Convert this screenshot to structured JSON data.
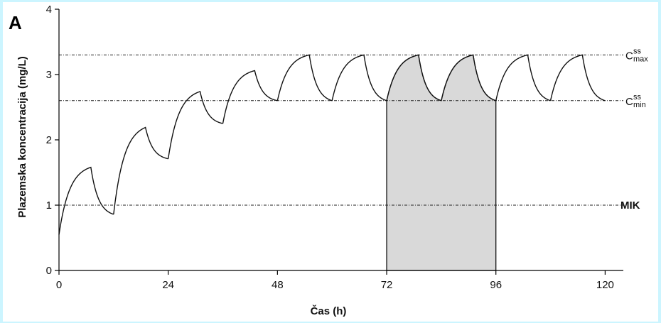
{
  "chart_data": {
    "type": "line",
    "panel_label": "A",
    "xlabel": "Čas (h)",
    "ylabel": "Plazemska koncentracija (mg/L)",
    "xlim": [
      0,
      124
    ],
    "ylim": [
      0,
      4
    ],
    "x_ticks": [
      0,
      24,
      48,
      72,
      96,
      120
    ],
    "y_ticks": [
      0,
      1,
      2,
      3,
      4
    ],
    "grid": false,
    "dosing_interval_h": 12,
    "absorption_duration_h": 7,
    "series": [
      {
        "name": "",
        "dose_cycles": [
          {
            "t_start": 0,
            "c_start": 0.55,
            "c_peak": 1.58,
            "c_end": 0.86
          },
          {
            "t_start": 12,
            "c_start": 0.86,
            "c_peak": 2.19,
            "c_end": 1.71
          },
          {
            "t_start": 24,
            "c_start": 1.71,
            "c_peak": 2.74,
            "c_end": 2.25
          },
          {
            "t_start": 36,
            "c_start": 2.25,
            "c_peak": 3.06,
            "c_end": 2.6
          },
          {
            "t_start": 48,
            "c_start": 2.6,
            "c_peak": 3.3,
            "c_end": 2.6
          },
          {
            "t_start": 60,
            "c_start": 2.6,
            "c_peak": 3.3,
            "c_end": 2.6
          },
          {
            "t_start": 72,
            "c_start": 2.6,
            "c_peak": 3.3,
            "c_end": 2.6
          },
          {
            "t_start": 84,
            "c_start": 2.6,
            "c_peak": 3.3,
            "c_end": 2.6
          },
          {
            "t_start": 96,
            "c_start": 2.6,
            "c_peak": 3.3,
            "c_end": 2.6
          },
          {
            "t_start": 108,
            "c_start": 2.6,
            "c_peak": 3.3,
            "c_end": 2.6
          }
        ]
      }
    ],
    "shaded_region": {
      "x_start": 72,
      "x_end": 96
    },
    "reference_lines": [
      {
        "key": "cmax",
        "y": 3.3,
        "label_main": "C",
        "label_sup": "ss",
        "label_sub": "max"
      },
      {
        "key": "cmin",
        "y": 2.6,
        "label_main": "C",
        "label_sup": "ss",
        "label_sub": "min"
      },
      {
        "key": "mik",
        "y": 1.0,
        "label_main": "MIK",
        "label_sup": "",
        "label_sub": ""
      }
    ],
    "colors": {
      "background": "#ccf5ff",
      "plot_background": "#ffffff",
      "curve": "#111111",
      "shade": "#d9d9d9"
    }
  }
}
